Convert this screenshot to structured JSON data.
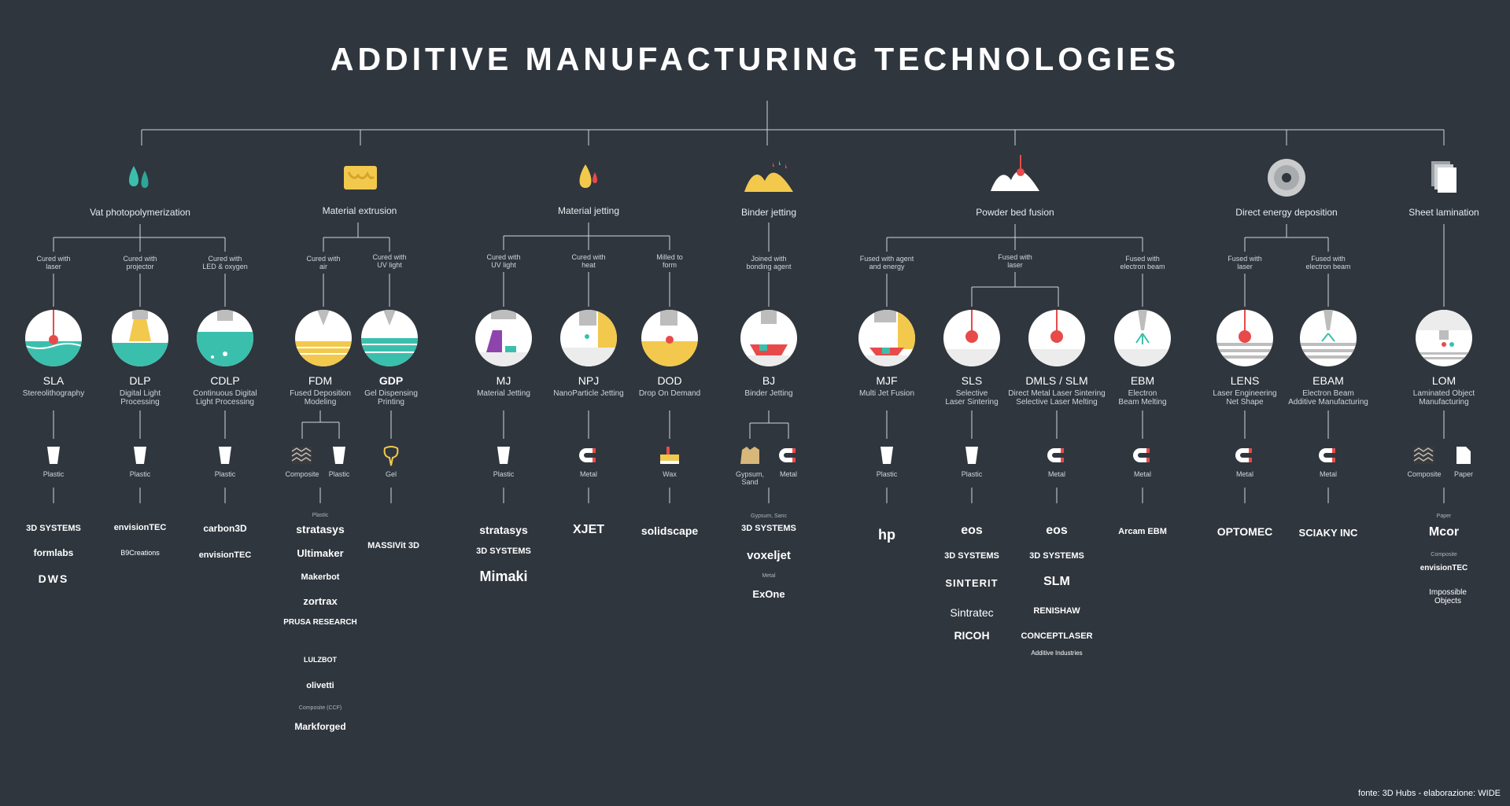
{
  "title": "ADDITIVE MANUFACTURING TECHNOLOGIES",
  "credit": "fonte: 3D Hubs - elaborazione: WIDE",
  "colors": {
    "background": "#2f363e",
    "teal": "#3bbfad",
    "yellow": "#f2c94c",
    "red": "#e84a4a",
    "purple": "#8e44ad",
    "grey": "#bdbdbd"
  },
  "categories": [
    {
      "label": "Vat photopolymerization",
      "icon": "droplets-icon"
    },
    {
      "label": "Material extrusion",
      "icon": "extrusion-block-icon"
    },
    {
      "label": "Material jetting",
      "icon": "droplet-icon"
    },
    {
      "label": "Binder jetting",
      "icon": "powder-icon"
    },
    {
      "label": "Powder bed fusion",
      "icon": "powder-laser-icon"
    },
    {
      "label": "Direct energy deposition",
      "icon": "disc-icon"
    },
    {
      "label": "Sheet lamination",
      "icon": "sheets-icon"
    }
  ],
  "subs": [
    "Cured with\nlaser",
    "Cured with\nprojector",
    "Cured with\nLED & oxygen",
    "Cured with\nair",
    "Cured with\nUV light",
    "Cured with\nUV light",
    "Cured with\nheat",
    "Milled to\nform",
    "Joined with\nbonding agent",
    "Fused with agent\nand energy",
    "Fused with\nlaser",
    "Fused with\nelectron beam",
    "Fused with\nlaser",
    "Fused with\nelectron beam"
  ],
  "techs": [
    {
      "abbr": "SLA",
      "name": "Stereolithography"
    },
    {
      "abbr": "DLP",
      "name": "Digital Light\nProcessing"
    },
    {
      "abbr": "CDLP",
      "name": "Continuous Digital\nLight Processing"
    },
    {
      "abbr": "FDM",
      "name": "Fused Deposition\nModeling"
    },
    {
      "abbr": "GDP",
      "name": "Gel Dispensing\nPrinting"
    },
    {
      "abbr": "MJ",
      "name": "Material Jetting"
    },
    {
      "abbr": "NPJ",
      "name": "NanoParticle Jetting"
    },
    {
      "abbr": "DOD",
      "name": "Drop On Demand"
    },
    {
      "abbr": "BJ",
      "name": "Binder Jetting"
    },
    {
      "abbr": "MJF",
      "name": "Multi Jet Fusion"
    },
    {
      "abbr": "SLS",
      "name": "Selective\nLaser Sintering"
    },
    {
      "abbr": "DMLS / SLM",
      "name": "Direct Metal Laser Sintering\nSelective Laser Melting"
    },
    {
      "abbr": "EBM",
      "name": "Electron\nBeam Melting"
    },
    {
      "abbr": "LENS",
      "name": "Laser Engineering\nNet Shape"
    },
    {
      "abbr": "EBAM",
      "name": "Electron Beam\nAdditive Manufacturing"
    },
    {
      "abbr": "LOM",
      "name": "Laminated Object\nManufacturing"
    }
  ],
  "materials": [
    "Plastic",
    "Plastic",
    "Plastic",
    "Composite",
    "Plastic",
    "Gel",
    "Plastic",
    "Metal",
    "Wax",
    "Gypsum,\nSand",
    "Metal",
    "Plastic",
    "Plastic",
    "Metal",
    "Metal",
    "Metal",
    "Metal",
    "Composite",
    "Paper"
  ],
  "notes": [
    "Plastic",
    "Composite (CCF)",
    "Gypsum, Sanc",
    "Metal",
    "Paper",
    "Composite"
  ],
  "brands": [
    "3D SYSTEMS",
    "formlabs",
    "DWS",
    "envisionTEC",
    "B9Creations",
    "carbon3D",
    "envisionTEC",
    "stratasys",
    "Ultimaker",
    "Makerbot",
    "zortrax",
    "PRUSA RESEARCH",
    "LULZBOT",
    "olivetti",
    "Markforged",
    "MASSIVit 3D",
    "stratasys",
    "3D SYSTEMS",
    "Mimaki",
    "XJET",
    "solidscape",
    "3D SYSTEMS",
    "voxeljet",
    "ExOne",
    "hp",
    "eos",
    "3D SYSTEMS",
    "SINTERIT",
    "Sintratec",
    "RICOH",
    "eos",
    "3D SYSTEMS",
    "SLM",
    "RENISHAW",
    "CONCEPTLASER",
    "Additive Industries",
    "Arcam EBM",
    "OPTOMEC",
    "SCIAKY INC",
    "Mcor",
    "envisionTEC",
    "Impossible Objects"
  ]
}
